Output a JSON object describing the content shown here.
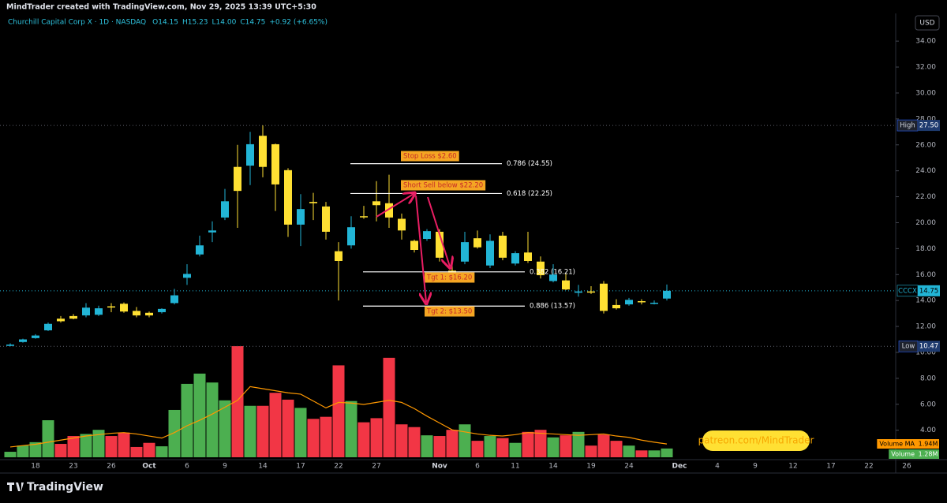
{
  "header": {
    "credit": "MindTrader created with TradingView.com, Nov 29, 2025 13:39 UTC+5:30",
    "logo": "TradingView"
  },
  "chart_data": {
    "type": "candlestick",
    "symbol": "Churchill Capital Corp X · 1D · NASDAQ",
    "ohlc": [
      "O14.15",
      "H15.23",
      "L14.00",
      "C14.75",
      "+0.92 (+6.65%)"
    ],
    "currency": "USD",
    "colors": {
      "up": "#22b5d6",
      "down": "#ffe033",
      "volume_up": "#4caf50",
      "volume_down": "#f23645",
      "volume_ma": "#ff9800"
    },
    "categories": [
      null,
      null,
      "18",
      null,
      null,
      "23",
      null,
      null,
      "26",
      null,
      null,
      "Oct",
      null,
      null,
      "6",
      null,
      null,
      "9",
      null,
      null,
      "14",
      null,
      null,
      "17",
      null,
      null,
      "22",
      null,
      null,
      "27",
      null,
      null,
      null,
      null,
      "Nov",
      null,
      null,
      "6",
      null,
      null,
      "11",
      null,
      null,
      "14",
      null,
      null,
      "19",
      null,
      null,
      "24",
      null,
      null,
      null,
      "Dec",
      null,
      null,
      "4",
      null,
      null,
      "9",
      null,
      null,
      "12",
      null,
      null,
      "17",
      null,
      null,
      "22",
      null,
      null,
      "26"
    ],
    "open": [
      10.5,
      10.8,
      11.1,
      11.7,
      12.6,
      12.8,
      12.85,
      12.9,
      13.55,
      13.75,
      13.2,
      13.05,
      13.1,
      13.8,
      15.75,
      17.55,
      19.25,
      20.4,
      24.3,
      24.4,
      26.7,
      26.05,
      24.05,
      19.85,
      21.6,
      21.25,
      17.8,
      18.25,
      20.5,
      21.65,
      21.5,
      20.3,
      18.6,
      18.75,
      19.3,
      16.3,
      17,
      18.8,
      16.7,
      19,
      16.85,
      17.7,
      17,
      15.5,
      15.55,
      14.6,
      14.7,
      15.3,
      13.65,
      13.7,
      13.95,
      13.8,
      14.15,
      null,
      null,
      null,
      null,
      null,
      null,
      null,
      null,
      null,
      null,
      null,
      null,
      null,
      null,
      null,
      null,
      null,
      null,
      null
    ],
    "high": [
      10.7,
      11.05,
      11.4,
      12.3,
      12.8,
      12.95,
      13.8,
      13.6,
      13.8,
      13.85,
      13.5,
      13.15,
      13.4,
      14.9,
      16.8,
      19,
      20.1,
      22.6,
      26,
      27,
      27.5,
      26.1,
      24.2,
      22.2,
      22.3,
      21.6,
      18.5,
      20.5,
      21.3,
      23.2,
      23.7,
      20.7,
      18.7,
      19.5,
      19.5,
      16.9,
      19.3,
      19.4,
      19.1,
      19.3,
      17.8,
      19.3,
      17.4,
      16.8,
      16.1,
      15.2,
      15.1,
      15.5,
      14.1,
      14.2,
      14.1,
      14,
      15.23,
      null,
      null,
      null,
      null,
      null,
      null,
      null,
      null,
      null,
      null,
      null,
      null,
      null,
      null,
      null,
      null,
      null,
      null,
      null
    ],
    "low": [
      10.47,
      10.75,
      11.05,
      11.65,
      12.3,
      12.55,
      12.7,
      12.8,
      13.1,
      13.05,
      12.7,
      12.7,
      13,
      13.7,
      15.2,
      17.4,
      18.5,
      20.2,
      19.6,
      22.9,
      23.5,
      20.9,
      18.9,
      18.2,
      20.2,
      18.7,
      14,
      18,
      20.3,
      20.1,
      19.6,
      18.7,
      17.7,
      18.6,
      17,
      15.6,
      16.8,
      18,
      16.5,
      17.1,
      16.7,
      16.9,
      15.7,
      15.4,
      14.8,
      14.3,
      14.5,
      13,
      13.3,
      13.6,
      13.7,
      13.7,
      14,
      null,
      null,
      null,
      null,
      null,
      null,
      null,
      null,
      null,
      null,
      null,
      null,
      null,
      null,
      null,
      null,
      null,
      null,
      null
    ],
    "close": [
      10.6,
      11,
      11.3,
      12.2,
      12.4,
      12.6,
      13.45,
      13.4,
      13.5,
      13.15,
      12.85,
      12.85,
      13.35,
      14.4,
      16.05,
      18.25,
      19.4,
      21.65,
      22.45,
      26.05,
      24.3,
      22.95,
      19.85,
      21.05,
      21.5,
      19.3,
      17.05,
      19.65,
      20.45,
      21.35,
      20.4,
      19.4,
      17.9,
      19.35,
      17.3,
      16,
      18.5,
      18.1,
      18.6,
      17.3,
      17.65,
      17.05,
      15.95,
      16,
      14.85,
      14.7,
      14.65,
      13.2,
      13.4,
      14.05,
      13.9,
      13.83,
      14.75,
      null,
      null,
      null,
      null,
      null,
      null,
      null,
      null,
      null,
      null,
      null,
      null,
      null,
      null,
      null,
      null,
      null,
      null,
      null
    ],
    "volume": {
      "name": "Volume",
      "last_label": "1.28M",
      "values": [
        0.8,
        1.7,
        2.2,
        5.4,
        1.95,
        3.1,
        3.4,
        4,
        3.1,
        3.6,
        1.5,
        2.1,
        1.6,
        6.9,
        10.7,
        12.2,
        10.9,
        8.3,
        16.2,
        7.5,
        7.5,
        9.4,
        8.4,
        7.2,
        5.6,
        5.9,
        13.4,
        8.2,
        5.1,
        5.7,
        14.5,
        4.8,
        4.4,
        3.2,
        3.1,
        4,
        4.8,
        2.4,
        3.1,
        2.8,
        2.1,
        3.7,
        4,
        2.9,
        3.2,
        3.7,
        1.7,
        3.3,
        2.4,
        1.7,
        1,
        1,
        1.28,
        null,
        null,
        null,
        null,
        null,
        null,
        null,
        null,
        null,
        null,
        null,
        null,
        null,
        null,
        null,
        null,
        null,
        null,
        null
      ]
    },
    "volume_ma": {
      "name": "Volume MA",
      "last_label": "1.94M",
      "values": [
        1.5,
        1.7,
        1.9,
        2.2,
        2.5,
        2.8,
        3.1,
        3.3,
        3.5,
        3.6,
        3.4,
        3.1,
        2.8,
        3.6,
        4.6,
        5.4,
        6.3,
        7.3,
        8.3,
        10.3,
        10,
        9.7,
        9.4,
        9.2,
        8.2,
        7.2,
        8,
        7.9,
        7.7,
        8,
        8.3,
        8,
        7.1,
        6,
        5,
        4,
        3.7,
        3.4,
        3.2,
        3.1,
        3.3,
        3.6,
        3.5,
        3.4,
        3.3,
        3.2,
        3.3,
        3.4,
        3.1,
        2.9,
        2.5,
        2.2,
        1.94,
        null,
        null,
        null,
        null,
        null,
        null,
        null,
        null,
        null,
        null,
        null,
        null,
        null,
        null,
        null,
        null,
        null,
        null,
        null
      ]
    },
    "ylim": [
      1.73,
      34.86
    ],
    "yticks": [
      {
        "value": 34,
        "label": "34.00"
      },
      {
        "value": 32,
        "label": "32.00"
      },
      {
        "value": 30,
        "label": "30.00"
      },
      {
        "value": 28,
        "label": "28.00"
      },
      {
        "value": 26,
        "label": "26.00"
      },
      {
        "value": 24,
        "label": "24.00"
      },
      {
        "value": 22,
        "label": "22.00"
      },
      {
        "value": 20,
        "label": "20.00"
      },
      {
        "value": 18,
        "label": "18.00"
      },
      {
        "value": 16,
        "label": "16.00"
      },
      {
        "value": 14,
        "label": "14.00"
      },
      {
        "value": 12,
        "label": "12.00"
      },
      {
        "value": 10,
        "label": "10.00"
      },
      {
        "value": 8,
        "label": "8.00"
      },
      {
        "value": 6,
        "label": "6.00"
      },
      {
        "value": 4,
        "label": "4.00"
      }
    ],
    "price_tags": [
      {
        "label": "High",
        "value": 27.5,
        "value_label": "27.50"
      },
      {
        "label": "Low",
        "value": 10.47,
        "value_label": "10.47"
      },
      {
        "label": "CCCX",
        "value": 14.75,
        "value_label": "14.75"
      }
    ],
    "levels": [
      {
        "label": "0.786 (24.55)",
        "value": 24.55
      },
      {
        "label": "0.618 (22.25)",
        "value": 22.25
      },
      {
        "label": "0.382 (16.21)",
        "value": 16.21
      },
      {
        "label": "0.886 (13.57)",
        "value": 13.57
      }
    ],
    "annotations": [
      "Stop Loss $2.60",
      "Short Sell below $22.20",
      "Tgt 1: $16.20",
      "Tgt 2: $13.50"
    ],
    "watermark": "patreon.com/MindTrader"
  }
}
